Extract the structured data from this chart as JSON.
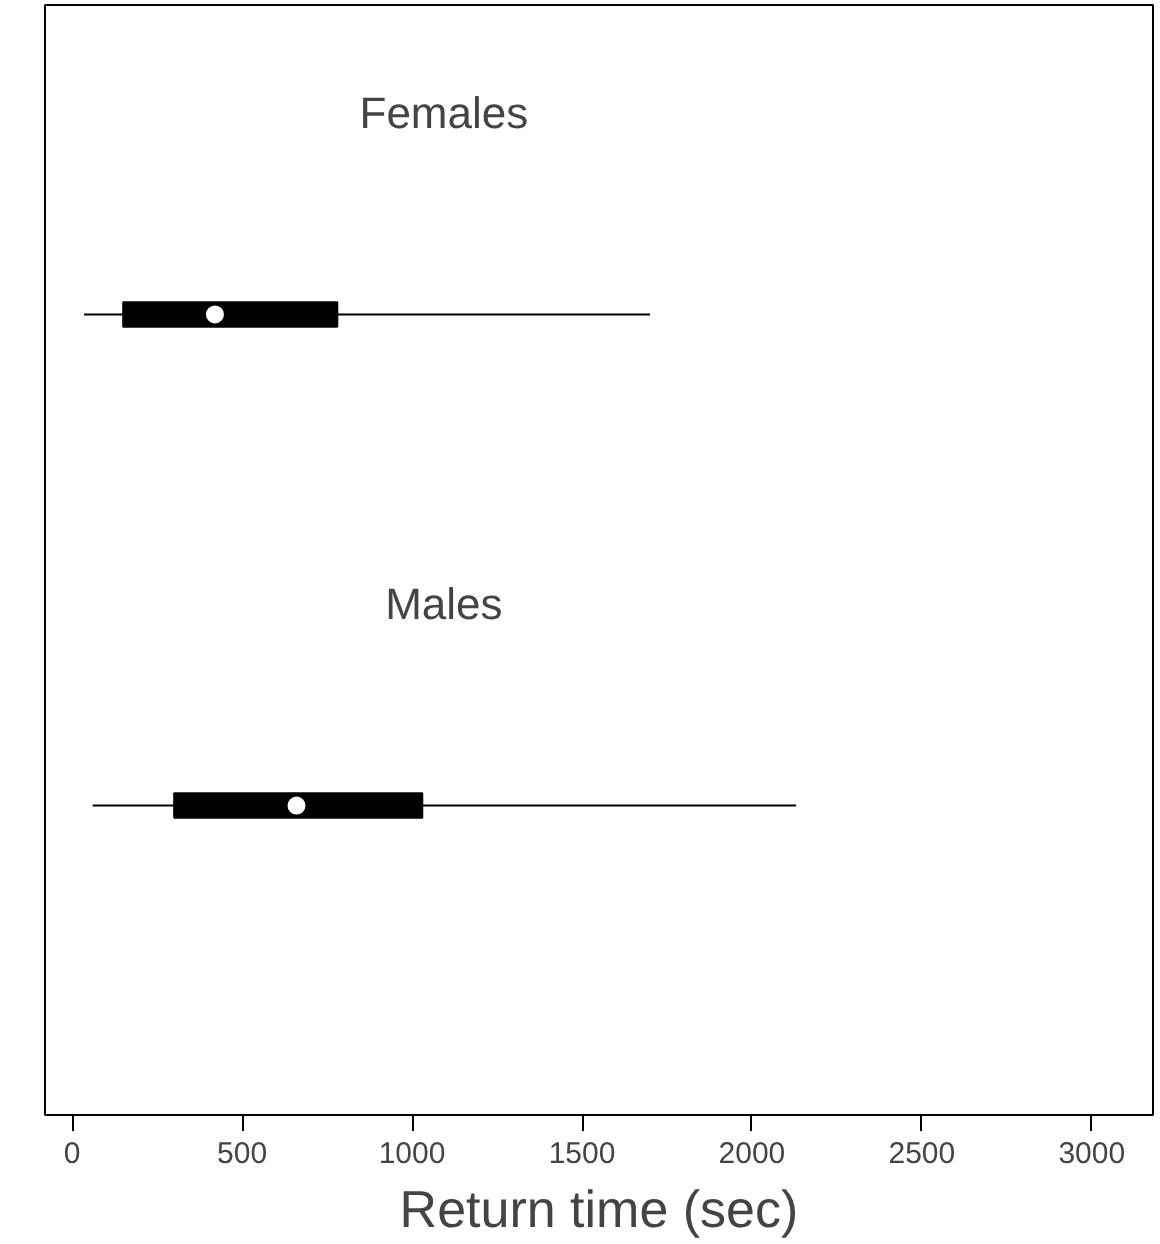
{
  "chart_data": {
    "type": "box",
    "orientation": "horizontal",
    "categories": [
      "Females",
      "Males"
    ],
    "boxes": [
      {
        "low": 35,
        "q1": 150,
        "median": 420,
        "q3": 780,
        "high": 1700
      },
      {
        "low": 60,
        "q1": 300,
        "median": 660,
        "q3": 1030,
        "high": 2130
      }
    ],
    "xlabel": "Return time (sec)",
    "xlim": [
      -80,
      3180
    ],
    "xticks": [
      0,
      500,
      1000,
      1500,
      2000,
      2500,
      3000
    ],
    "tick_labels": "x",
    "grid": false
  }
}
